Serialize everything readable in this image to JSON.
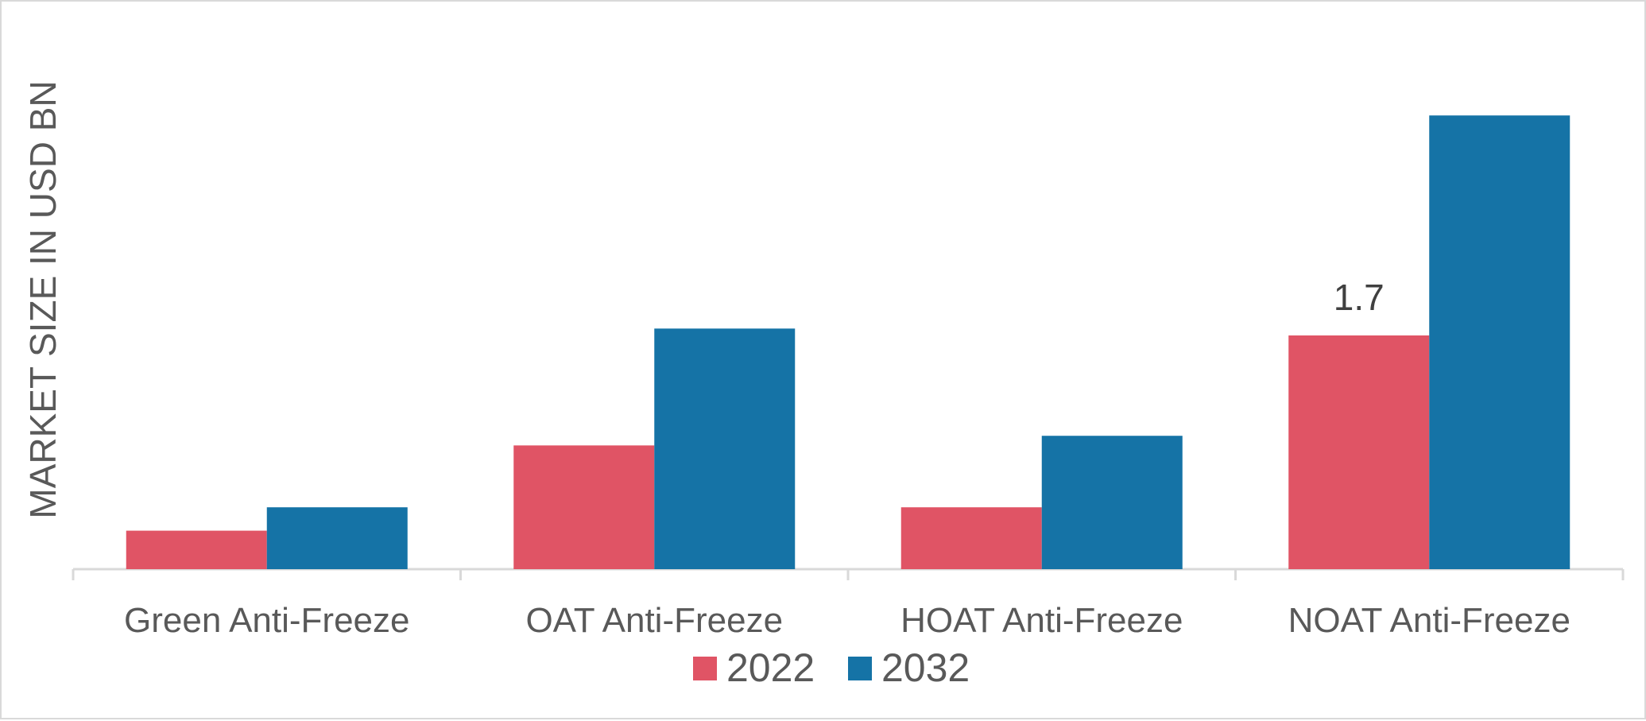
{
  "chart_data": {
    "type": "bar",
    "title": "",
    "xlabel": "",
    "ylabel": "MARKET SIZE IN USD BN",
    "categories": [
      "Green Anti-Freeze",
      "OAT Anti-Freeze",
      "HOAT Anti-Freeze",
      "NOAT Anti-Freeze"
    ],
    "series": [
      {
        "name": "2022",
        "color": "#e05465",
        "values": [
          0.28,
          0.9,
          0.45,
          1.7
        ]
      },
      {
        "name": "2032",
        "color": "#1573a6",
        "values": [
          0.45,
          1.75,
          0.97,
          3.3
        ]
      }
    ],
    "data_labels": [
      {
        "series": 0,
        "category": 3,
        "text": "1.7"
      }
    ],
    "ylim": [
      0,
      3.55
    ],
    "grid": false,
    "legend_position": "bottom"
  }
}
